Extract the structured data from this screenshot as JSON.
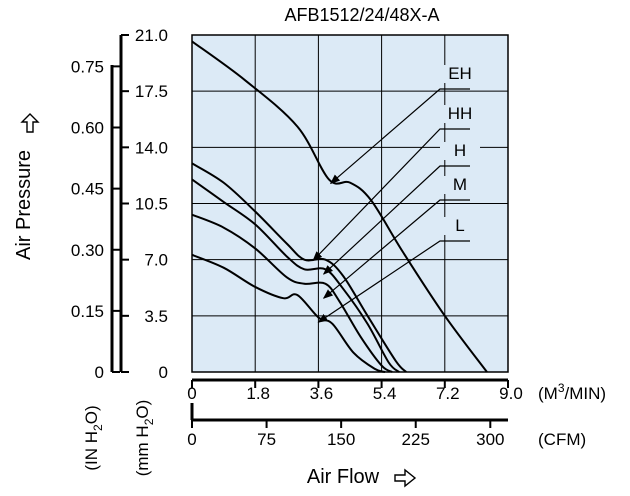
{
  "chart_data": {
    "type": "line",
    "title": "AFB1512/24/48X-A",
    "xlabel": "Air Flow",
    "ylabel": "Air Pressure",
    "x_axes": [
      {
        "unit": "(M3/MIN)",
        "unit_base": "(M",
        "unit_sup": "3",
        "unit_tail": "/MIN)",
        "ticks": [
          "0",
          "1.8",
          "3.6",
          "5.4",
          "7.2",
          "9.0"
        ],
        "range": [
          0,
          9.0
        ]
      },
      {
        "unit": "(CFM)",
        "ticks": [
          "0",
          "75",
          "150",
          "225",
          "300"
        ],
        "range": [
          0,
          317.8
        ]
      }
    ],
    "y_axes": [
      {
        "unit": "(IN H2O)",
        "unit_parts": [
          "(IN H",
          "2",
          "O)"
        ],
        "ticks": [
          "0",
          "0.15",
          "0.30",
          "0.45",
          "0.60",
          "0.75"
        ],
        "range": [
          0,
          0.827
        ]
      },
      {
        "unit": "(mm H2O)",
        "unit_parts": [
          "(mm H",
          "2",
          "O)"
        ],
        "ticks": [
          "0",
          "3.5",
          "7.0",
          "10.5",
          "14.0",
          "17.5",
          "21.0"
        ],
        "range": [
          0,
          21.0
        ]
      }
    ],
    "xlim": [
      0,
      9.0
    ],
    "ylim": [
      0,
      21.0
    ],
    "grid": true,
    "series": [
      {
        "name": "EH",
        "x": [
          0,
          1.5,
          3.0,
          3.9,
          4.5,
          5.1,
          6.0,
          7.2,
          8.4
        ],
        "y": [
          20.6,
          18.2,
          15.3,
          12.0,
          11.8,
          10.7,
          7.5,
          3.5,
          0
        ]
      },
      {
        "name": "HH",
        "x": [
          0,
          0.9,
          1.8,
          2.7,
          3.2,
          3.8,
          4.3,
          5.0,
          5.8,
          6.1
        ],
        "y": [
          13.0,
          11.8,
          10.0,
          8.0,
          7.0,
          7.0,
          6.0,
          3.5,
          0.7,
          0
        ]
      },
      {
        "name": "H",
        "x": [
          0,
          0.9,
          1.8,
          2.7,
          3.2,
          3.8,
          4.3,
          5.0,
          5.6,
          5.9
        ],
        "y": [
          12.0,
          10.6,
          9.2,
          7.2,
          6.4,
          6.4,
          5.2,
          3.0,
          0.6,
          0
        ]
      },
      {
        "name": "M",
        "x": [
          0,
          0.9,
          1.8,
          2.7,
          3.2,
          3.8,
          4.2,
          4.8,
          5.4,
          5.7
        ],
        "y": [
          9.8,
          9.0,
          7.7,
          5.9,
          5.5,
          5.5,
          4.4,
          2.2,
          0.4,
          0
        ]
      },
      {
        "name": "L",
        "x": [
          0,
          0.9,
          1.8,
          2.6,
          3.0,
          3.6,
          4.0,
          4.6,
          5.2,
          5.5
        ],
        "y": [
          7.3,
          6.5,
          5.3,
          4.6,
          4.8,
          3.4,
          3.0,
          1.2,
          0.2,
          0
        ]
      }
    ],
    "legend": "right-callouts",
    "colors": {
      "plot_background": "#dceaf6",
      "line": "#000000",
      "grid": "#000000"
    }
  }
}
